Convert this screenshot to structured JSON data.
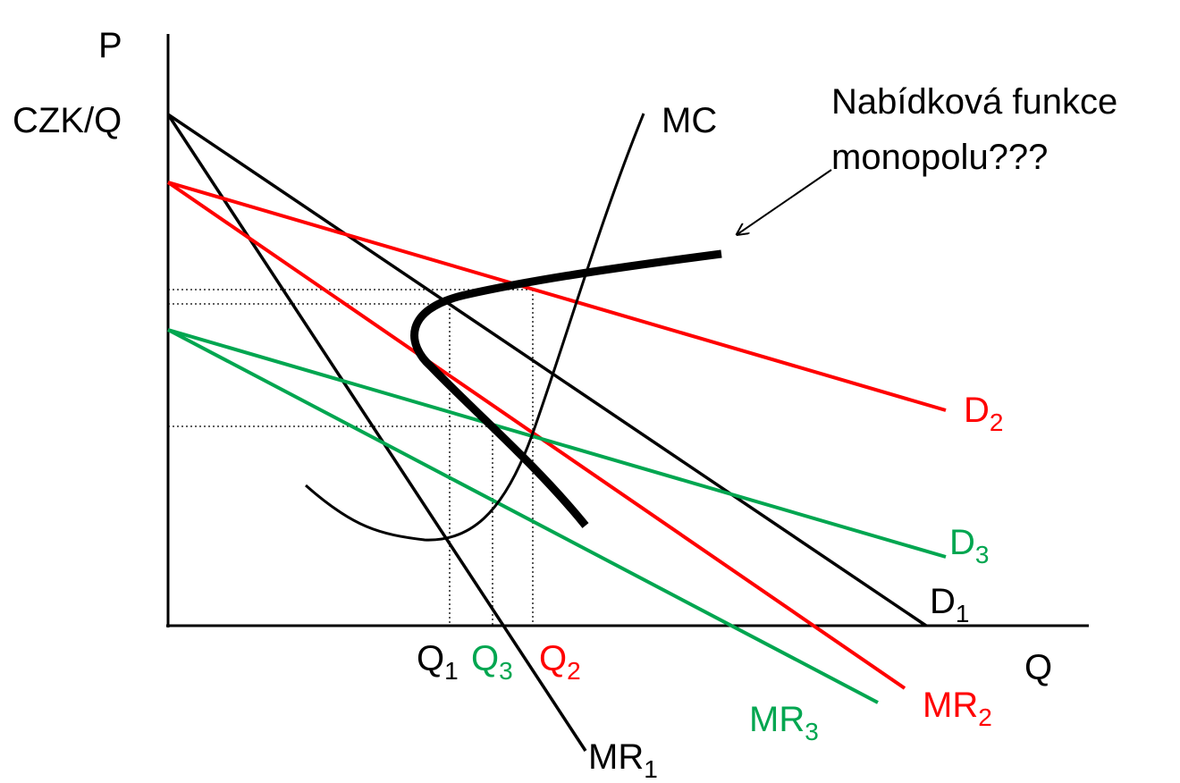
{
  "colors": {
    "black": "#000000",
    "red": "#ff0000",
    "green": "#00a650"
  },
  "axes": {
    "y_label": "P",
    "y_unit": "CZK/Q",
    "x_label": "Q"
  },
  "curves": {
    "mc": {
      "label": "MC"
    },
    "d1": {
      "label": "D",
      "sub": "1"
    },
    "mr1": {
      "label": "MR",
      "sub": "1"
    },
    "d2": {
      "label": "D",
      "sub": "2"
    },
    "mr2": {
      "label": "MR",
      "sub": "2"
    },
    "d3": {
      "label": "D",
      "sub": "3"
    },
    "mr3": {
      "label": "MR",
      "sub": "3"
    }
  },
  "quantities": {
    "q1": {
      "label": "Q",
      "sub": "1"
    },
    "q3": {
      "label": "Q",
      "sub": "3"
    },
    "q2": {
      "label": "Q",
      "sub": "2"
    }
  },
  "annotation": {
    "line1": "Nabídková funkce",
    "line2": "monopolu???"
  }
}
